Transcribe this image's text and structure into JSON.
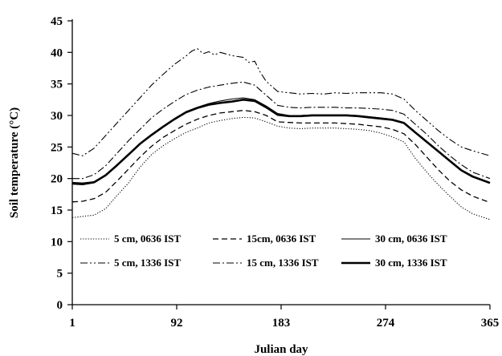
{
  "chart_data": {
    "type": "line",
    "title": "",
    "xlabel": "Julian day",
    "ylabel": "Soil temperature (°C)",
    "xlim": [
      1,
      365
    ],
    "ylim": [
      0,
      45
    ],
    "xticks": [
      1,
      92,
      183,
      274,
      365
    ],
    "yticks": [
      0,
      5,
      10,
      15,
      20,
      25,
      30,
      35,
      40,
      45
    ],
    "grid": false,
    "legend_position": "bottom-inside",
    "series": [
      {
        "name": "5 cm, 0636 IST",
        "dash": "dotted",
        "width": 1.1,
        "x": [
          1,
          10,
          20,
          30,
          40,
          50,
          60,
          70,
          80,
          90,
          100,
          110,
          120,
          130,
          140,
          150,
          160,
          170,
          180,
          190,
          200,
          210,
          220,
          230,
          240,
          250,
          260,
          270,
          280,
          290,
          300,
          310,
          320,
          330,
          340,
          350,
          365
        ],
        "values": [
          13.8,
          14.0,
          14.2,
          15.2,
          17.3,
          19.3,
          21.8,
          23.8,
          25.2,
          26.3,
          27.3,
          28.0,
          28.8,
          29.2,
          29.5,
          29.7,
          29.6,
          29.0,
          28.3,
          28.0,
          27.9,
          28.0,
          28.0,
          28.0,
          27.9,
          27.8,
          27.6,
          27.2,
          26.6,
          25.8,
          23.2,
          21.0,
          19.0,
          17.2,
          15.5,
          14.4,
          13.5
        ]
      },
      {
        "name": "15cm, 0636 IST",
        "dash": "dashed",
        "width": 1.3,
        "x": [
          1,
          10,
          20,
          30,
          40,
          50,
          60,
          70,
          80,
          90,
          100,
          110,
          120,
          130,
          140,
          150,
          160,
          170,
          180,
          190,
          200,
          210,
          220,
          230,
          240,
          250,
          260,
          270,
          280,
          290,
          300,
          310,
          320,
          330,
          340,
          350,
          365
        ],
        "values": [
          16.3,
          16.4,
          16.8,
          17.8,
          19.6,
          21.5,
          23.4,
          25.1,
          26.5,
          27.6,
          28.6,
          29.4,
          30.0,
          30.4,
          30.6,
          30.8,
          30.6,
          30.0,
          29.0,
          28.9,
          28.8,
          28.8,
          28.8,
          28.8,
          28.7,
          28.6,
          28.4,
          28.2,
          27.8,
          27.1,
          25.4,
          23.4,
          21.4,
          19.6,
          18.2,
          17.2,
          16.2
        ]
      },
      {
        "name": "30 cm, 0636 IST",
        "dash": "solid",
        "width": 1.1,
        "x": [
          1,
          10,
          20,
          30,
          40,
          50,
          60,
          70,
          80,
          90,
          100,
          110,
          120,
          130,
          140,
          150,
          160,
          170,
          180,
          190,
          200,
          210,
          220,
          230,
          240,
          250,
          260,
          270,
          280,
          290,
          300,
          310,
          320,
          330,
          340,
          350,
          365
        ],
        "values": [
          19.4,
          19.3,
          19.5,
          20.6,
          22.2,
          23.9,
          25.6,
          27.0,
          28.3,
          29.5,
          30.6,
          31.3,
          31.9,
          32.3,
          32.6,
          32.8,
          32.5,
          31.5,
          30.3,
          30.0,
          30.0,
          30.1,
          30.1,
          30.1,
          30.1,
          30.0,
          29.8,
          29.6,
          29.4,
          28.9,
          27.4,
          25.9,
          24.4,
          22.9,
          21.4,
          20.4,
          19.4
        ]
      },
      {
        "name": "5 cm, 1336 IST",
        "dash": "dashdotdot",
        "width": 1.1,
        "x": [
          1,
          10,
          20,
          30,
          40,
          50,
          60,
          70,
          80,
          90,
          100,
          105,
          110,
          115,
          120,
          125,
          130,
          140,
          150,
          155,
          160,
          165,
          170,
          180,
          190,
          200,
          210,
          220,
          230,
          240,
          250,
          260,
          270,
          280,
          290,
          300,
          310,
          320,
          330,
          340,
          350,
          365
        ],
        "values": [
          24.0,
          23.6,
          24.8,
          26.8,
          28.8,
          30.8,
          32.8,
          34.8,
          36.5,
          38.1,
          39.4,
          40.2,
          40.6,
          39.8,
          40.1,
          39.6,
          40.0,
          39.5,
          39.2,
          38.4,
          38.6,
          36.8,
          35.4,
          33.8,
          33.6,
          33.4,
          33.5,
          33.4,
          33.6,
          33.5,
          33.6,
          33.6,
          33.6,
          33.4,
          32.6,
          30.8,
          29.2,
          27.6,
          26.2,
          25.0,
          24.4,
          23.6
        ]
      },
      {
        "name": "15 cm, 1336 IST",
        "dash": "dashdot",
        "width": 1.1,
        "x": [
          1,
          10,
          20,
          30,
          40,
          50,
          60,
          70,
          80,
          90,
          100,
          110,
          120,
          130,
          140,
          150,
          160,
          170,
          180,
          190,
          200,
          210,
          220,
          230,
          240,
          250,
          260,
          270,
          280,
          290,
          300,
          310,
          320,
          330,
          340,
          350,
          365
        ],
        "values": [
          20.0,
          20.0,
          20.6,
          22.0,
          24.0,
          26.0,
          27.8,
          29.6,
          31.0,
          32.2,
          33.3,
          34.0,
          34.5,
          34.8,
          35.1,
          35.3,
          34.8,
          33.2,
          31.6,
          31.3,
          31.2,
          31.3,
          31.3,
          31.3,
          31.2,
          31.2,
          31.1,
          31.0,
          30.8,
          30.2,
          28.6,
          27.0,
          25.2,
          23.6,
          22.2,
          21.0,
          20.0
        ]
      },
      {
        "name": "30 cm, 1336 IST",
        "dash": "solid",
        "width": 2.6,
        "x": [
          1,
          10,
          20,
          30,
          40,
          50,
          60,
          70,
          80,
          90,
          100,
          110,
          120,
          130,
          140,
          150,
          160,
          170,
          180,
          190,
          200,
          210,
          220,
          230,
          240,
          250,
          260,
          270,
          280,
          290,
          300,
          310,
          320,
          330,
          340,
          350,
          365
        ],
        "values": [
          19.2,
          19.1,
          19.4,
          20.5,
          22.1,
          23.8,
          25.5,
          26.9,
          28.2,
          29.4,
          30.5,
          31.2,
          31.7,
          32.0,
          32.2,
          32.5,
          32.3,
          31.3,
          30.1,
          29.9,
          29.9,
          30.0,
          30.0,
          30.0,
          30.0,
          29.9,
          29.7,
          29.5,
          29.3,
          28.8,
          27.3,
          25.8,
          24.3,
          22.8,
          21.3,
          20.3,
          19.3
        ]
      }
    ]
  }
}
